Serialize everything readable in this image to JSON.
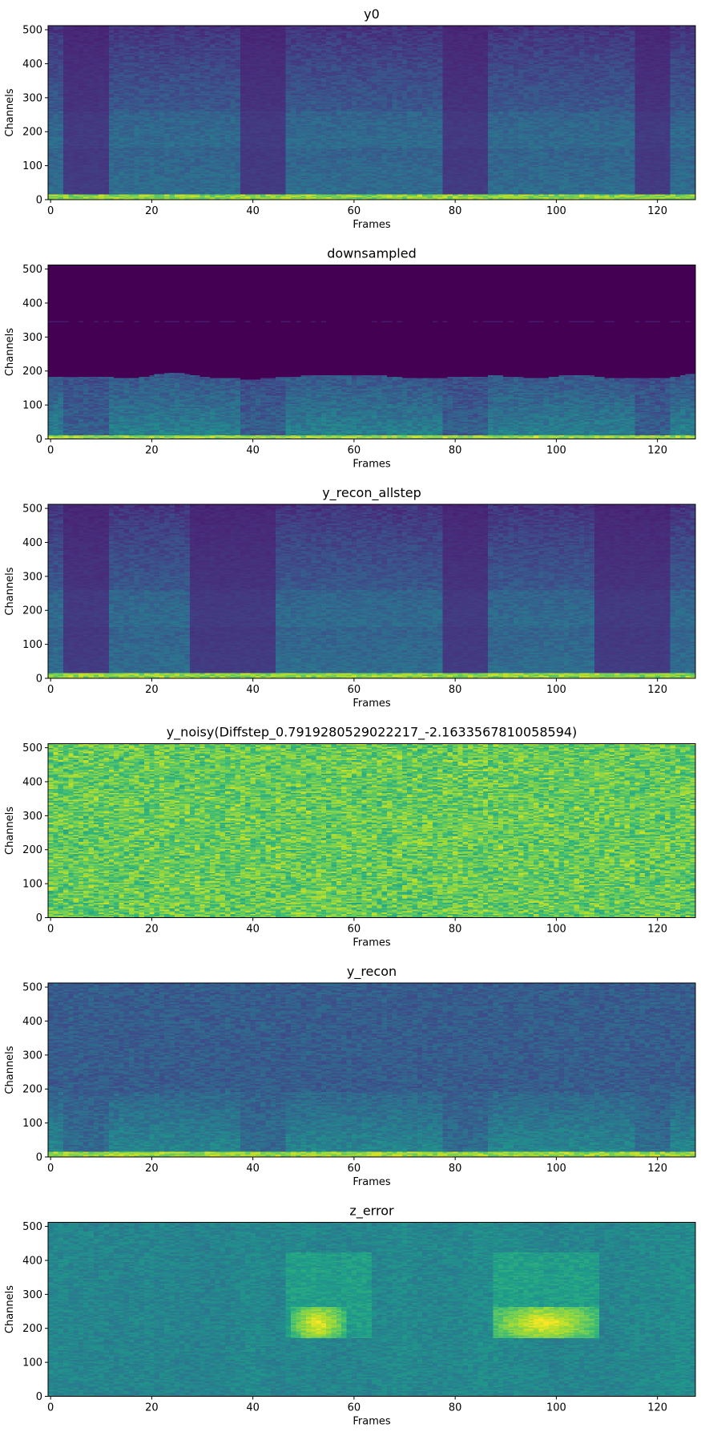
{
  "chart_data": [
    {
      "type": "heatmap",
      "title": "y0",
      "xlabel": "Frames",
      "ylabel": "Channels",
      "xlim": [
        0,
        127
      ],
      "ylim": [
        0,
        512
      ],
      "xticks": [
        0,
        20,
        40,
        60,
        80,
        100,
        120
      ],
      "yticks": [
        0,
        100,
        200,
        300,
        400,
        500
      ],
      "colormap": "viridis",
      "pattern": "spectrogram",
      "voiced_segments": [
        [
          12,
          46
        ],
        [
          47,
          63
        ],
        [
          64,
          76
        ],
        [
          88,
          108
        ],
        [
          109,
          127
        ]
      ],
      "silent_gaps": [
        [
          3,
          11
        ],
        [
          38,
          46
        ],
        [
          78,
          86
        ],
        [
          116,
          122
        ]
      ]
    },
    {
      "type": "heatmap",
      "title": "downsampled",
      "xlabel": "Frames",
      "ylabel": "Channels",
      "xlim": [
        0,
        127
      ],
      "ylim": [
        0,
        512
      ],
      "xticks": [
        0,
        20,
        40,
        60,
        80,
        100,
        120
      ],
      "yticks": [
        0,
        100,
        200,
        300,
        400,
        500
      ],
      "colormap": "viridis",
      "pattern": "lowband",
      "cutoff_channel": 185,
      "voiced_segments": [
        [
          12,
          46
        ],
        [
          47,
          63
        ],
        [
          64,
          76
        ],
        [
          88,
          108
        ],
        [
          109,
          127
        ]
      ],
      "silent_gaps": [
        [
          3,
          11
        ],
        [
          38,
          46
        ],
        [
          78,
          86
        ],
        [
          116,
          122
        ]
      ]
    },
    {
      "type": "heatmap",
      "title": "y_recon_allstep",
      "xlabel": "Frames",
      "ylabel": "Channels",
      "xlim": [
        0,
        127
      ],
      "ylim": [
        0,
        512
      ],
      "xticks": [
        0,
        20,
        40,
        60,
        80,
        100,
        120
      ],
      "yticks": [
        0,
        100,
        200,
        300,
        400,
        500
      ],
      "colormap": "viridis",
      "pattern": "spectrogram",
      "voiced_segments": [
        [
          12,
          46
        ],
        [
          47,
          63
        ],
        [
          64,
          76
        ],
        [
          88,
          108
        ],
        [
          109,
          127
        ]
      ],
      "silent_gaps": [
        [
          3,
          11
        ],
        [
          28,
          44
        ],
        [
          78,
          86
        ],
        [
          108,
          122
        ]
      ]
    },
    {
      "type": "heatmap",
      "title": "y_noisy(Diffstep_0.7919280529022217_-2.1633567810058594)",
      "xlabel": "Frames",
      "ylabel": "Channels",
      "xlim": [
        0,
        127
      ],
      "ylim": [
        0,
        512
      ],
      "xticks": [
        0,
        20,
        40,
        60,
        80,
        100,
        120
      ],
      "yticks": [
        0,
        100,
        200,
        300,
        400,
        500
      ],
      "colormap": "viridis",
      "pattern": "noise"
    },
    {
      "type": "heatmap",
      "title": "y_recon",
      "xlabel": "Frames",
      "ylabel": "Channels",
      "xlim": [
        0,
        127
      ],
      "ylim": [
        0,
        512
      ],
      "xticks": [
        0,
        20,
        40,
        60,
        80,
        100,
        120
      ],
      "yticks": [
        0,
        100,
        200,
        300,
        400,
        500
      ],
      "colormap": "viridis",
      "pattern": "recon",
      "voiced_segments": [
        [
          12,
          46
        ],
        [
          47,
          63
        ],
        [
          64,
          76
        ],
        [
          88,
          108
        ],
        [
          109,
          127
        ]
      ],
      "silent_gaps": [
        [
          3,
          11
        ],
        [
          38,
          46
        ],
        [
          78,
          86
        ],
        [
          116,
          122
        ]
      ]
    },
    {
      "type": "heatmap",
      "title": "z_error",
      "xlabel": "Frames",
      "ylabel": "Channels",
      "xlim": [
        0,
        127
      ],
      "ylim": [
        0,
        512
      ],
      "xticks": [
        0,
        20,
        40,
        60,
        80,
        100,
        120
      ],
      "yticks": [
        0,
        100,
        200,
        300,
        400,
        500
      ],
      "colormap": "viridis",
      "pattern": "error",
      "highlight_regions": [
        [
          48,
          58,
          170,
          260
        ],
        [
          88,
          108,
          170,
          260
        ]
      ]
    }
  ]
}
